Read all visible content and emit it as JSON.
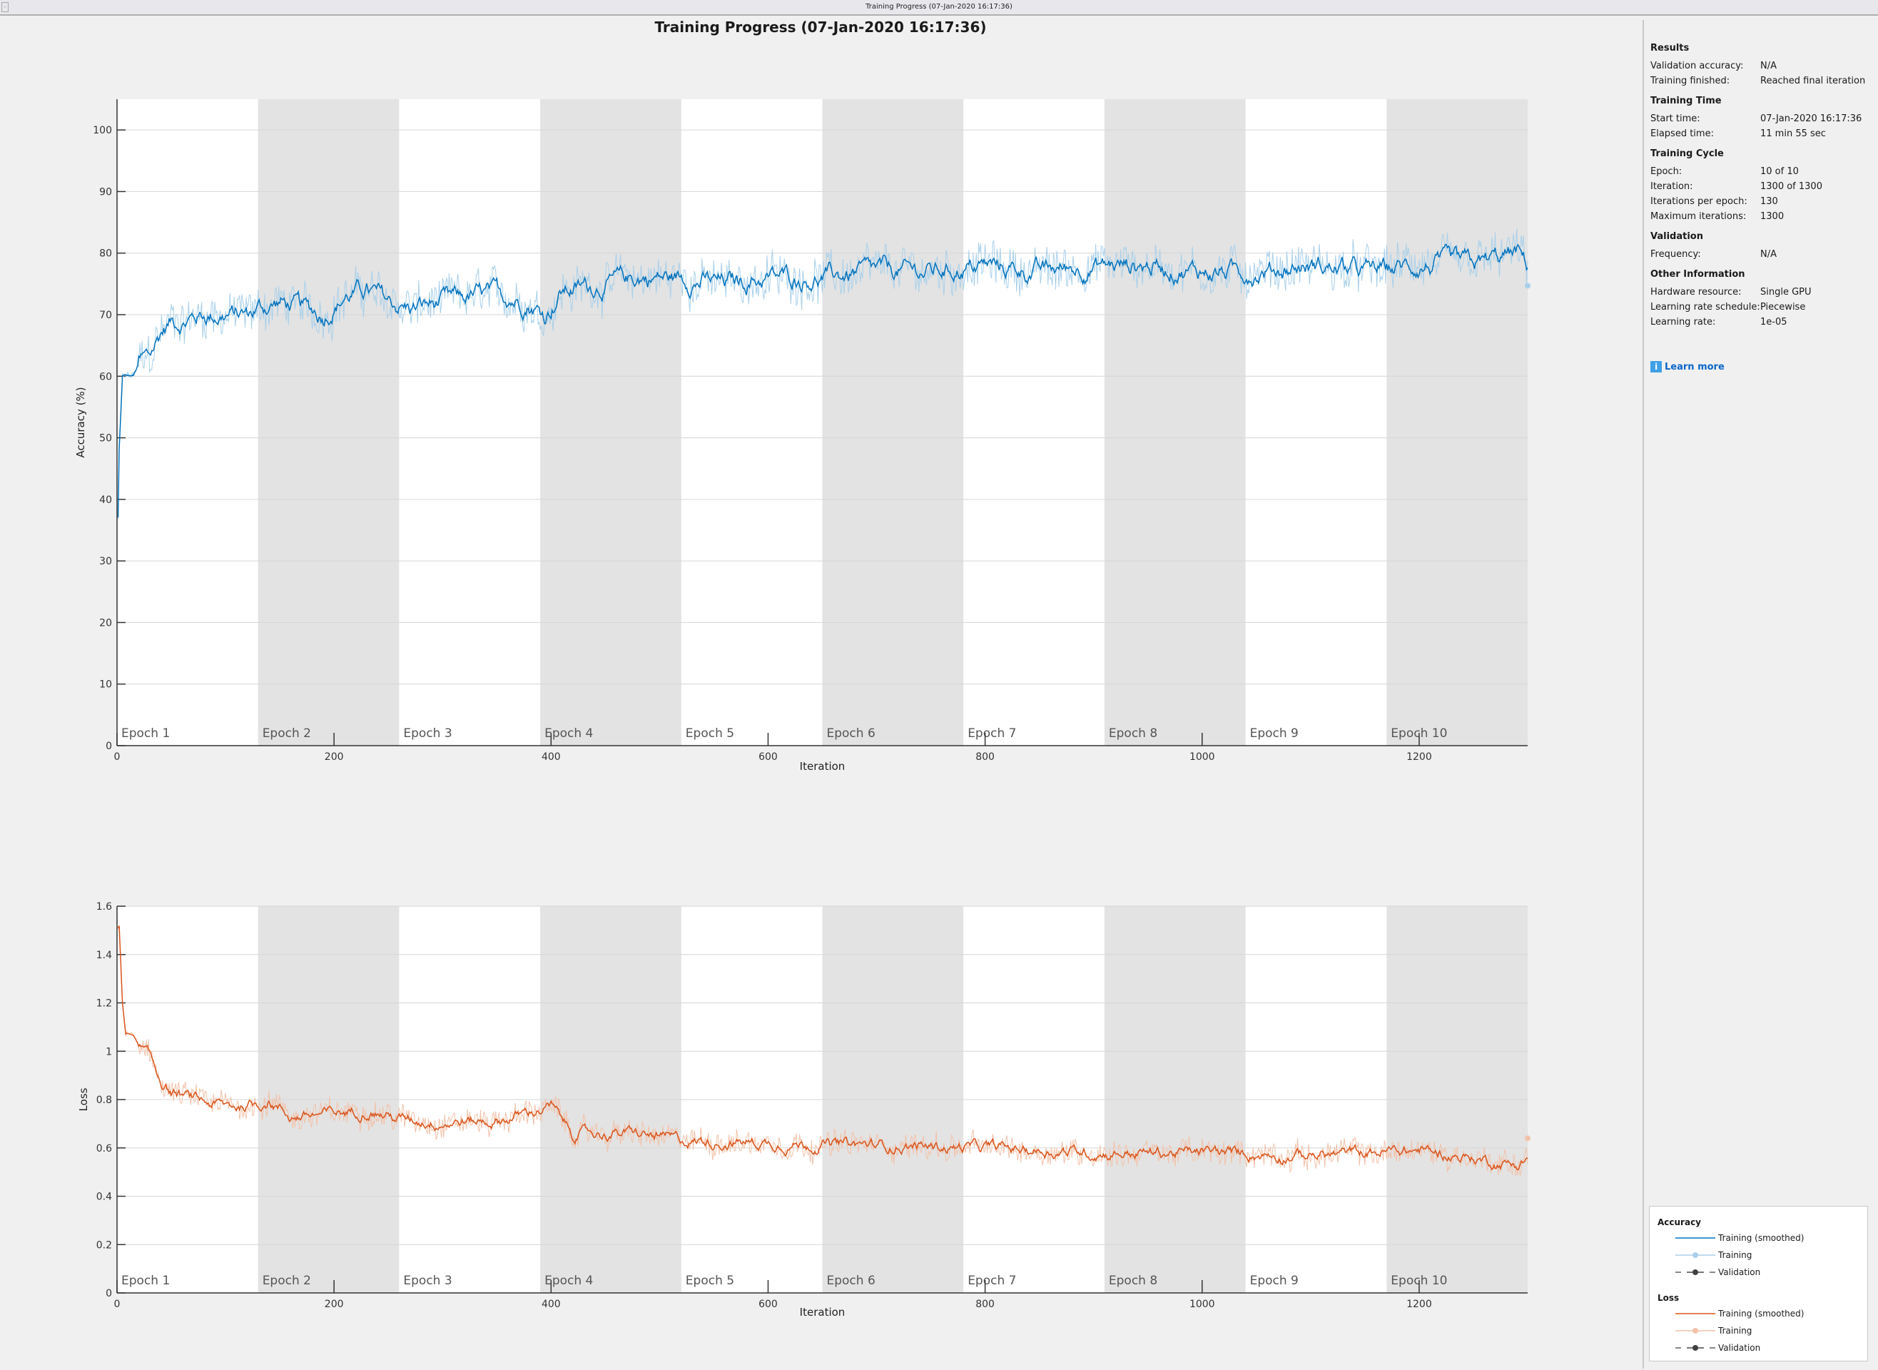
{
  "window": {
    "title": "Training Progress (07-Jan-2020 16:17:36)"
  },
  "page_title": "Training Progress (07-Jan-2020 16:17:36)",
  "panel": {
    "sections": [
      {
        "title": "Results",
        "rows": [
          {
            "label": "Validation accuracy:",
            "value": "N/A"
          },
          {
            "label": "Training finished:",
            "value": "Reached final iteration"
          }
        ]
      },
      {
        "title": "Training Time",
        "rows": [
          {
            "label": "Start time:",
            "value": "07-Jan-2020 16:17:36"
          },
          {
            "label": "Elapsed time:",
            "value": "11 min 55 sec"
          }
        ]
      },
      {
        "title": "Training Cycle",
        "rows": [
          {
            "label": "Epoch:",
            "value": "10 of 10"
          },
          {
            "label": "Iteration:",
            "value": "1300 of 1300"
          },
          {
            "label": "Iterations per epoch:",
            "value": "130"
          },
          {
            "label": "Maximum iterations:",
            "value": "1300"
          }
        ]
      },
      {
        "title": "Validation",
        "rows": [
          {
            "label": "Frequency:",
            "value": "N/A"
          }
        ]
      },
      {
        "title": "Other Information",
        "rows": [
          {
            "label": "Hardware resource:",
            "value": "Single GPU"
          },
          {
            "label": "Learning rate schedule:",
            "value": "Piecewise"
          },
          {
            "label": "Learning rate:",
            "value": "1e-05"
          }
        ]
      }
    ],
    "learn_more": "Learn more",
    "info_icon": "info-icon"
  },
  "legend": {
    "accuracy_title": "Accuracy",
    "loss_title": "Loss",
    "smoothed": "Training (smoothed)",
    "training": "Training",
    "validation": "Validation"
  },
  "colors": {
    "acc_smoothed": "#0072bd",
    "acc_raw": "#a9d0ea",
    "loss_smoothed": "#d95319",
    "loss_raw": "#f2c2aa",
    "validation": "#404040",
    "epoch_shade": "#e3e3e3",
    "grid": "#d6d6d6"
  },
  "chart_data": [
    {
      "type": "line",
      "name": "accuracy",
      "xlabel": "Iteration",
      "ylabel": "Accuracy (%)",
      "xlim": [
        0,
        1300
      ],
      "ylim": [
        0,
        105
      ],
      "xticks": [
        0,
        200,
        400,
        600,
        800,
        1000,
        1200
      ],
      "yticks": [
        0,
        10,
        20,
        30,
        40,
        50,
        60,
        70,
        80,
        90,
        100
      ],
      "grid": true,
      "epochs": [
        "Epoch 1",
        "Epoch 2",
        "Epoch 3",
        "Epoch 4",
        "Epoch 5",
        "Epoch 6",
        "Epoch 7",
        "Epoch 8",
        "Epoch 9",
        "Epoch 10"
      ],
      "iterations_per_epoch": 130,
      "smoothed": {
        "x": [
          0,
          2,
          5,
          10,
          15,
          20,
          30,
          40,
          50,
          60,
          80,
          100,
          120,
          130,
          150,
          170,
          190,
          210,
          230,
          250,
          270,
          300,
          330,
          360,
          380,
          395,
          410,
          450,
          480,
          520,
          560,
          600,
          650,
          700,
          750,
          800,
          850,
          900,
          950,
          1000,
          1050,
          1100,
          1150,
          1200,
          1250,
          1290,
          1300
        ],
        "y": [
          26,
          48,
          60,
          60,
          60,
          62,
          63,
          67,
          69,
          69,
          70,
          70,
          70,
          71,
          72,
          71,
          70,
          73,
          74,
          72,
          71,
          72,
          73,
          73,
          72,
          70,
          74,
          75,
          76,
          76,
          75,
          76,
          76,
          77,
          77,
          78,
          77,
          78,
          78,
          77,
          77,
          78,
          77,
          78,
          78,
          80,
          78
        ]
      },
      "final_training_value": 74.7
    },
    {
      "type": "line",
      "name": "loss",
      "xlabel": "Iteration",
      "ylabel": "Loss",
      "xlim": [
        0,
        1300
      ],
      "ylim": [
        0,
        1.6
      ],
      "xticks": [
        0,
        200,
        400,
        600,
        800,
        1000,
        1200
      ],
      "yticks": [
        0,
        0.2,
        0.4,
        0.6,
        0.8,
        1,
        1.2,
        1.4,
        1.6
      ],
      "grid": true,
      "epochs": [
        "Epoch 1",
        "Epoch 2",
        "Epoch 3",
        "Epoch 4",
        "Epoch 5",
        "Epoch 6",
        "Epoch 7",
        "Epoch 8",
        "Epoch 9",
        "Epoch 10"
      ],
      "iterations_per_epoch": 130,
      "smoothed": {
        "x": [
          0,
          2,
          5,
          8,
          15,
          20,
          30,
          40,
          50,
          70,
          100,
          130,
          140,
          160,
          200,
          230,
          260,
          300,
          350,
          390,
          400,
          420,
          470,
          520,
          600,
          700,
          800,
          900,
          1000,
          1100,
          1200,
          1290,
          1300
        ],
        "y": [
          1.5,
          1.52,
          1.2,
          1.07,
          1.07,
          1.02,
          0.97,
          0.88,
          0.83,
          0.8,
          0.77,
          0.78,
          0.8,
          0.73,
          0.74,
          0.76,
          0.72,
          0.71,
          0.71,
          0.76,
          0.77,
          0.66,
          0.66,
          0.63,
          0.62,
          0.61,
          0.6,
          0.58,
          0.58,
          0.57,
          0.59,
          0.53,
          0.56
        ]
      },
      "final_training_value": 0.64
    }
  ]
}
